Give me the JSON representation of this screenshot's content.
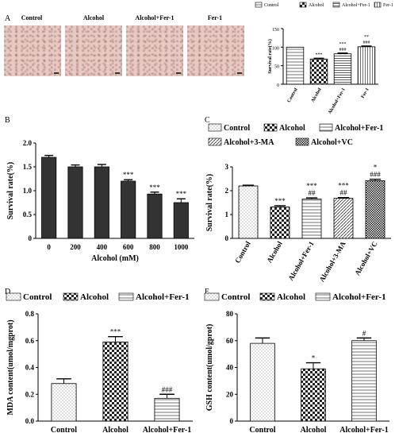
{
  "panels": {
    "A": "A",
    "B": "B",
    "C": "C",
    "D": "D",
    "E": "E"
  },
  "micrograph_labels": [
    "Control",
    "Alcohol",
    "Alcohol+Fer-1",
    "Fer-1"
  ],
  "chart_data": [
    {
      "id": "A",
      "type": "bar",
      "categories": [
        "Control",
        "Alcohol",
        "Alcohol+Fer-1",
        "Fer-1"
      ],
      "values": [
        100,
        68,
        82,
        101
      ],
      "errors": [
        0,
        2,
        2,
        2
      ],
      "annotations": [
        "",
        "***",
        "***\n###",
        "**\n###"
      ],
      "ylabel": "Survival rate(%)",
      "ylim": [
        0,
        150
      ],
      "yticks": [
        0,
        50,
        100,
        150
      ],
      "legend": [
        "Control",
        "Alcohol",
        "Alcohol+Fer-1",
        "Fer-1"
      ],
      "legend_position": "top",
      "patterns": [
        "hlines",
        "checker",
        "hlines-dense",
        "vlines"
      ]
    },
    {
      "id": "B",
      "type": "bar",
      "categories": [
        "0",
        "200",
        "400",
        "600",
        "800",
        "1000"
      ],
      "values": [
        1.7,
        1.5,
        1.5,
        1.2,
        0.93,
        0.75
      ],
      "errors": [
        0.04,
        0.04,
        0.05,
        0.03,
        0.04,
        0.08
      ],
      "annotations": [
        "",
        "",
        "",
        "***",
        "***",
        "***"
      ],
      "xlabel": "Alcohol (mM)",
      "ylabel": "Survival rate(%)",
      "ylim": [
        0,
        2.0
      ],
      "yticks": [
        0,
        0.5,
        1.0,
        1.5,
        2.0
      ],
      "patterns": [
        "solid",
        "solid",
        "solid",
        "solid",
        "solid",
        "solid"
      ]
    },
    {
      "id": "C",
      "type": "bar",
      "categories": [
        "Control",
        "Alcohol",
        "Alcohol+Fer-1",
        "Alcohol+3-MA",
        "Alcohol+VC"
      ],
      "values": [
        2.2,
        1.32,
        1.65,
        1.68,
        2.42
      ],
      "errors": [
        0.03,
        0.05,
        0.05,
        0.03,
        0.06
      ],
      "annotations": [
        "",
        "***",
        "***\n##",
        "***\n##",
        "*\n###"
      ],
      "ylabel": "Survival rate(%)",
      "ylim": [
        0,
        3
      ],
      "yticks": [
        0,
        1,
        2,
        3
      ],
      "legend": [
        "Control",
        "Alcohol",
        "Alcohol+Fer-1",
        "Alcohol+3-MA",
        "Alcohol+VC"
      ],
      "legend_position": "top",
      "patterns": [
        "dots",
        "checker",
        "hlines",
        "diag",
        "dense-checker"
      ]
    },
    {
      "id": "D",
      "type": "bar",
      "categories": [
        "Control",
        "Alcohol",
        "Alcohol+Fer-1"
      ],
      "values": [
        0.28,
        0.59,
        0.17
      ],
      "errors": [
        0.035,
        0.04,
        0.03
      ],
      "annotations": [
        "",
        "***",
        "###"
      ],
      "ylabel": "MDA content(umol/mgprot)",
      "ylim": [
        0,
        0.8
      ],
      "yticks": [
        0.0,
        0.2,
        0.4,
        0.6,
        0.8
      ],
      "legend": [
        "Control",
        "Alcohol",
        "Alcohol+Fer-1"
      ],
      "legend_position": "top",
      "patterns": [
        "dots",
        "checker",
        "hlines"
      ]
    },
    {
      "id": "E",
      "type": "bar",
      "categories": [
        "Control",
        "Alcohol",
        "Alcohol+Fer-1"
      ],
      "values": [
        58,
        39,
        60
      ],
      "errors": [
        4,
        4.5,
        2
      ],
      "annotations": [
        "",
        "*",
        "#"
      ],
      "ylabel": "GSH content(umol/gprot)",
      "ylim": [
        0,
        80
      ],
      "yticks": [
        0,
        20,
        40,
        60,
        80
      ],
      "legend": [
        "Control",
        "Alcohol",
        "Alcohol+Fer-1"
      ],
      "legend_position": "top",
      "patterns": [
        "dots",
        "checker",
        "hlines"
      ]
    }
  ]
}
